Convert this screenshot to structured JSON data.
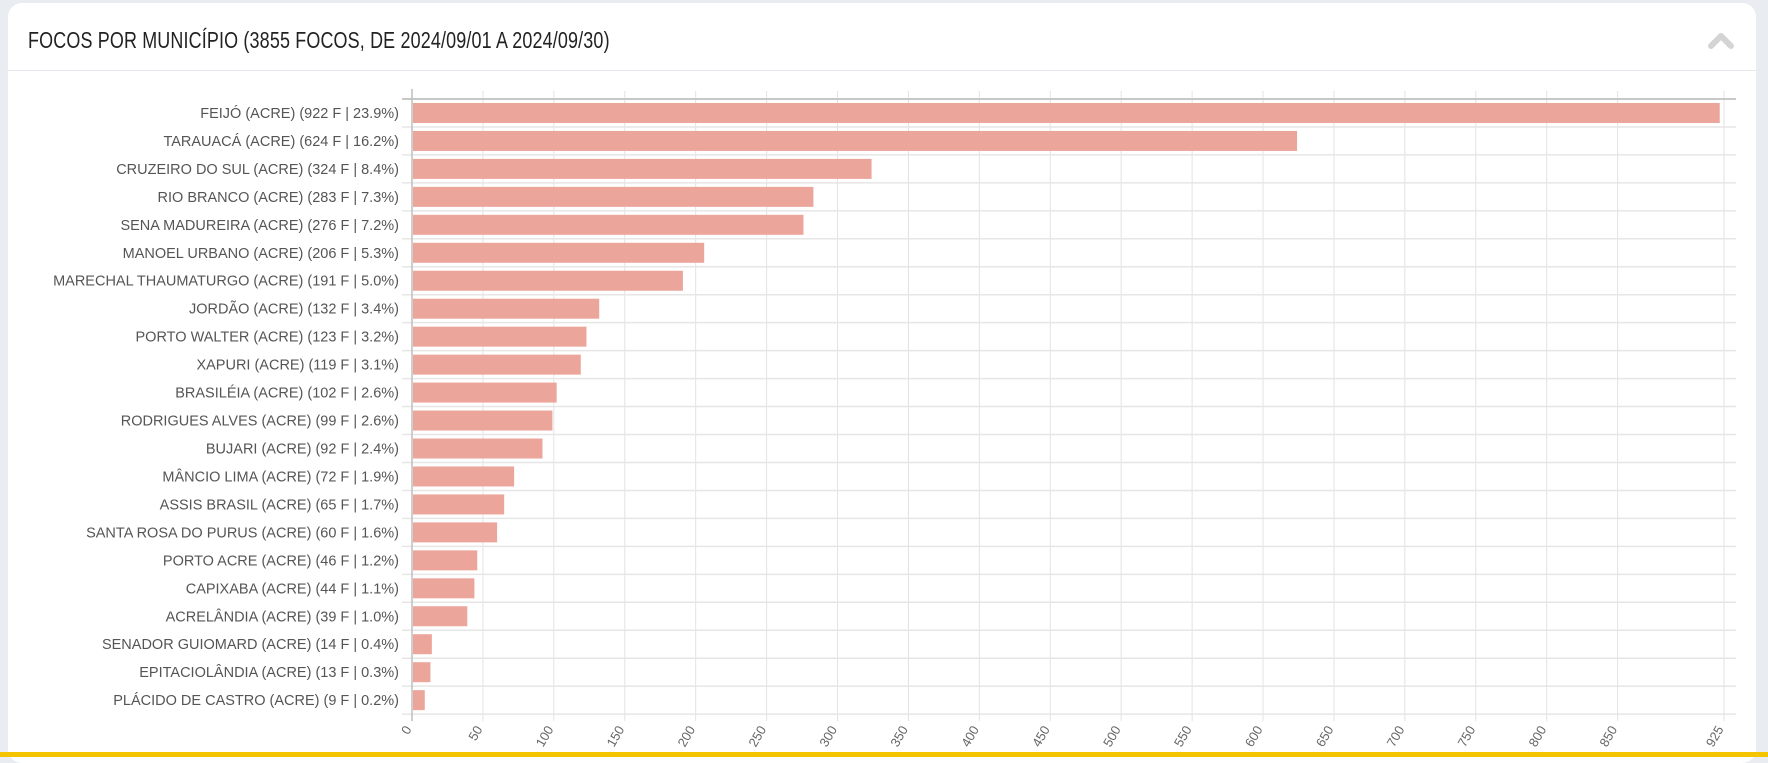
{
  "header": {
    "title": "FOCOS POR MUNICÍPIO (3855 FOCOS, DE 2024/09/01 A 2024/09/30)",
    "collapse_icon": "chevron-up-icon"
  },
  "colors": {
    "bar": "#eca59b",
    "grid": "#e3e3e3",
    "label": "#555555"
  },
  "chart_data": {
    "type": "bar",
    "orientation": "horizontal",
    "title": "FOCOS POR MUNICÍPIO (3855 FOCOS, DE 2024/09/01 A 2024/09/30)",
    "categories": [
      "FEIJÓ (ACRE) (922 F | 23.9%)",
      "TARAUACÁ (ACRE) (624 F | 16.2%)",
      "CRUZEIRO DO SUL (ACRE) (324 F | 8.4%)",
      "RIO BRANCO (ACRE) (283 F | 7.3%)",
      "SENA MADUREIRA (ACRE) (276 F | 7.2%)",
      "MANOEL URBANO (ACRE) (206 F | 5.3%)",
      "MARECHAL THAUMATURGO (ACRE) (191 F | 5.0%)",
      "JORDÃO (ACRE) (132 F | 3.4%)",
      "PORTO WALTER (ACRE) (123 F | 3.2%)",
      "XAPURI (ACRE) (119 F | 3.1%)",
      "BRASILÉIA (ACRE) (102 F | 2.6%)",
      "RODRIGUES ALVES (ACRE) (99 F | 2.6%)",
      "BUJARI (ACRE) (92 F | 2.4%)",
      "MÂNCIO LIMA (ACRE) (72 F | 1.9%)",
      "ASSIS BRASIL (ACRE) (65 F | 1.7%)",
      "SANTA ROSA DO PURUS (ACRE) (60 F | 1.6%)",
      "PORTO ACRE (ACRE) (46 F | 1.2%)",
      "CAPIXABA (ACRE) (44 F | 1.1%)",
      "ACRELÂNDIA (ACRE) (39 F | 1.0%)",
      "SENADOR GUIOMARD (ACRE) (14 F | 0.4%)",
      "EPITACIOLÂNDIA (ACRE) (13 F | 0.3%)",
      "PLÁCIDO DE CASTRO (ACRE) (9 F | 0.2%)"
    ],
    "values": [
      922,
      624,
      324,
      283,
      276,
      206,
      191,
      132,
      123,
      119,
      102,
      99,
      92,
      72,
      65,
      60,
      46,
      44,
      39,
      14,
      13,
      9
    ],
    "xticks": [
      "0",
      "50",
      "100",
      "150",
      "200",
      "250",
      "300",
      "350",
      "400",
      "450",
      "500",
      "550",
      "600",
      "650",
      "700",
      "750",
      "800",
      "850",
      "925"
    ],
    "xtick_values": [
      0,
      50,
      100,
      150,
      200,
      250,
      300,
      350,
      400,
      450,
      500,
      550,
      600,
      650,
      700,
      750,
      800,
      850,
      925
    ],
    "xlim": [
      0,
      925
    ],
    "grid": true,
    "xlabel": "",
    "ylabel": ""
  }
}
